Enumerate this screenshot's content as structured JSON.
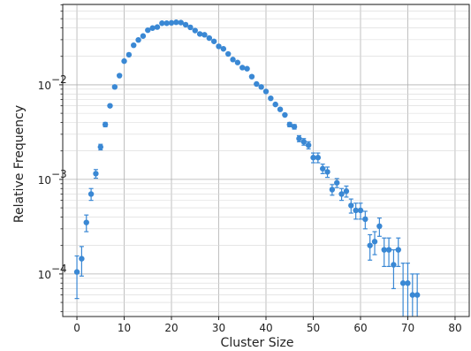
{
  "chart_data": {
    "type": "scatter",
    "title": "",
    "xlabel": "Cluster Size",
    "ylabel": "Relative Frequency",
    "xlim": [
      -3,
      83
    ],
    "ylim_log10": [
      -4.45,
      -1.15
    ],
    "yscale": "log",
    "grid": "both",
    "x_ticks": [
      0,
      10,
      20,
      30,
      40,
      50,
      60,
      70,
      80
    ],
    "x_tick_labels": [
      "0",
      "10",
      "20",
      "30",
      "40",
      "50",
      "60",
      "70",
      "80"
    ],
    "y_ticks": [
      0.0001,
      0.001,
      0.01
    ],
    "y_tick_labels": [
      "10",
      "10",
      "10"
    ],
    "y_tick_exponents": [
      "−4",
      "−3",
      "−2"
    ],
    "marker_color": "#3a88d4",
    "series": [
      {
        "points": [
          {
            "x": 0,
            "y": 0.000105,
            "lo": 5.5e-05,
            "hi": 0.000155
          },
          {
            "x": 1,
            "y": 0.000145,
            "lo": 9.5e-05,
            "hi": 0.000195
          },
          {
            "x": 2,
            "y": 0.00035,
            "lo": 0.00028,
            "hi": 0.00042
          },
          {
            "x": 3,
            "y": 0.0007,
            "lo": 0.0006,
            "hi": 0.0008
          },
          {
            "x": 4,
            "y": 0.00115,
            "lo": 0.00103,
            "hi": 0.00127
          },
          {
            "x": 5,
            "y": 0.0022,
            "lo": 0.00205,
            "hi": 0.00235
          },
          {
            "x": 6,
            "y": 0.0038,
            "lo": 0.0036,
            "hi": 0.004
          },
          {
            "x": 7,
            "y": 0.006,
            "lo": 0.0058,
            "hi": 0.0062
          },
          {
            "x": 8,
            "y": 0.0095,
            "lo": 0.0093,
            "hi": 0.0097
          },
          {
            "x": 9,
            "y": 0.0125
          },
          {
            "x": 10,
            "y": 0.0178
          },
          {
            "x": 11,
            "y": 0.0208
          },
          {
            "x": 12,
            "y": 0.0262
          },
          {
            "x": 13,
            "y": 0.0298
          },
          {
            "x": 14,
            "y": 0.0328
          },
          {
            "x": 15,
            "y": 0.0378
          },
          {
            "x": 16,
            "y": 0.0398
          },
          {
            "x": 17,
            "y": 0.0408
          },
          {
            "x": 18,
            "y": 0.0448
          },
          {
            "x": 19,
            "y": 0.0448
          },
          {
            "x": 20,
            "y": 0.0452
          },
          {
            "x": 21,
            "y": 0.0458
          },
          {
            "x": 22,
            "y": 0.0455
          },
          {
            "x": 23,
            "y": 0.0432
          },
          {
            "x": 24,
            "y": 0.0405
          },
          {
            "x": 25,
            "y": 0.0375
          },
          {
            "x": 26,
            "y": 0.0345
          },
          {
            "x": 27,
            "y": 0.0338
          },
          {
            "x": 28,
            "y": 0.0312
          },
          {
            "x": 29,
            "y": 0.0288
          },
          {
            "x": 30,
            "y": 0.0255
          },
          {
            "x": 31,
            "y": 0.024
          },
          {
            "x": 32,
            "y": 0.0212
          },
          {
            "x": 33,
            "y": 0.0185
          },
          {
            "x": 34,
            "y": 0.0172
          },
          {
            "x": 35,
            "y": 0.0152
          },
          {
            "x": 36,
            "y": 0.0148
          },
          {
            "x": 37,
            "y": 0.0122
          },
          {
            "x": 38,
            "y": 0.0102
          },
          {
            "x": 39,
            "y": 0.0095
          },
          {
            "x": 40,
            "y": 0.0085
          },
          {
            "x": 41,
            "y": 0.0072
          },
          {
            "x": 42,
            "y": 0.0062
          },
          {
            "x": 43,
            "y": 0.0055
          },
          {
            "x": 44,
            "y": 0.0048
          },
          {
            "x": 45,
            "y": 0.0038,
            "lo": 0.0036,
            "hi": 0.004
          },
          {
            "x": 46,
            "y": 0.0036,
            "lo": 0.0034,
            "hi": 0.0038
          },
          {
            "x": 47,
            "y": 0.0027,
            "lo": 0.0025,
            "hi": 0.0029
          },
          {
            "x": 48,
            "y": 0.0025,
            "lo": 0.0023,
            "hi": 0.0027
          },
          {
            "x": 49,
            "y": 0.0023,
            "lo": 0.0021,
            "hi": 0.0025
          },
          {
            "x": 50,
            "y": 0.0017,
            "lo": 0.0015,
            "hi": 0.0019
          },
          {
            "x": 51,
            "y": 0.0017,
            "lo": 0.0015,
            "hi": 0.0019
          },
          {
            "x": 52,
            "y": 0.0013,
            "lo": 0.00115,
            "hi": 0.00145
          },
          {
            "x": 53,
            "y": 0.0012,
            "lo": 0.00105,
            "hi": 0.00135
          },
          {
            "x": 54,
            "y": 0.00078,
            "lo": 0.00068,
            "hi": 0.00088
          },
          {
            "x": 55,
            "y": 0.00092,
            "lo": 0.00082,
            "hi": 0.00102
          },
          {
            "x": 56,
            "y": 0.0007,
            "lo": 0.0006,
            "hi": 0.0008
          },
          {
            "x": 57,
            "y": 0.00075,
            "lo": 0.00065,
            "hi": 0.00085
          },
          {
            "x": 58,
            "y": 0.00053,
            "lo": 0.00044,
            "hi": 0.00062
          },
          {
            "x": 59,
            "y": 0.00047,
            "lo": 0.00038,
            "hi": 0.00056
          },
          {
            "x": 60,
            "y": 0.00047,
            "lo": 0.00038,
            "hi": 0.00056
          },
          {
            "x": 61,
            "y": 0.00038,
            "lo": 0.0003,
            "hi": 0.00046
          },
          {
            "x": 62,
            "y": 0.0002,
            "lo": 0.00014,
            "hi": 0.00026
          },
          {
            "x": 63,
            "y": 0.00022,
            "lo": 0.00016,
            "hi": 0.00028
          },
          {
            "x": 64,
            "y": 0.00032,
            "lo": 0.00025,
            "hi": 0.00039
          },
          {
            "x": 65,
            "y": 0.00018,
            "lo": 0.00012,
            "hi": 0.00024
          },
          {
            "x": 66,
            "y": 0.00018,
            "lo": 0.00012,
            "hi": 0.00024
          },
          {
            "x": 67,
            "y": 0.000125,
            "lo": 7e-05,
            "hi": 0.00018
          },
          {
            "x": 68,
            "y": 0.00018,
            "lo": 0.00012,
            "hi": 0.00024
          },
          {
            "x": 69,
            "y": 8e-05,
            "lo": 3e-05,
            "hi": 0.00013
          },
          {
            "x": 70,
            "y": 8e-05,
            "lo": 3e-05,
            "hi": 0.00013
          },
          {
            "x": 71,
            "y": 6e-05,
            "lo": 2e-05,
            "hi": 0.0001
          },
          {
            "x": 72,
            "y": 6e-05,
            "lo": 2e-05,
            "hi": 0.0001
          }
        ]
      }
    ]
  }
}
